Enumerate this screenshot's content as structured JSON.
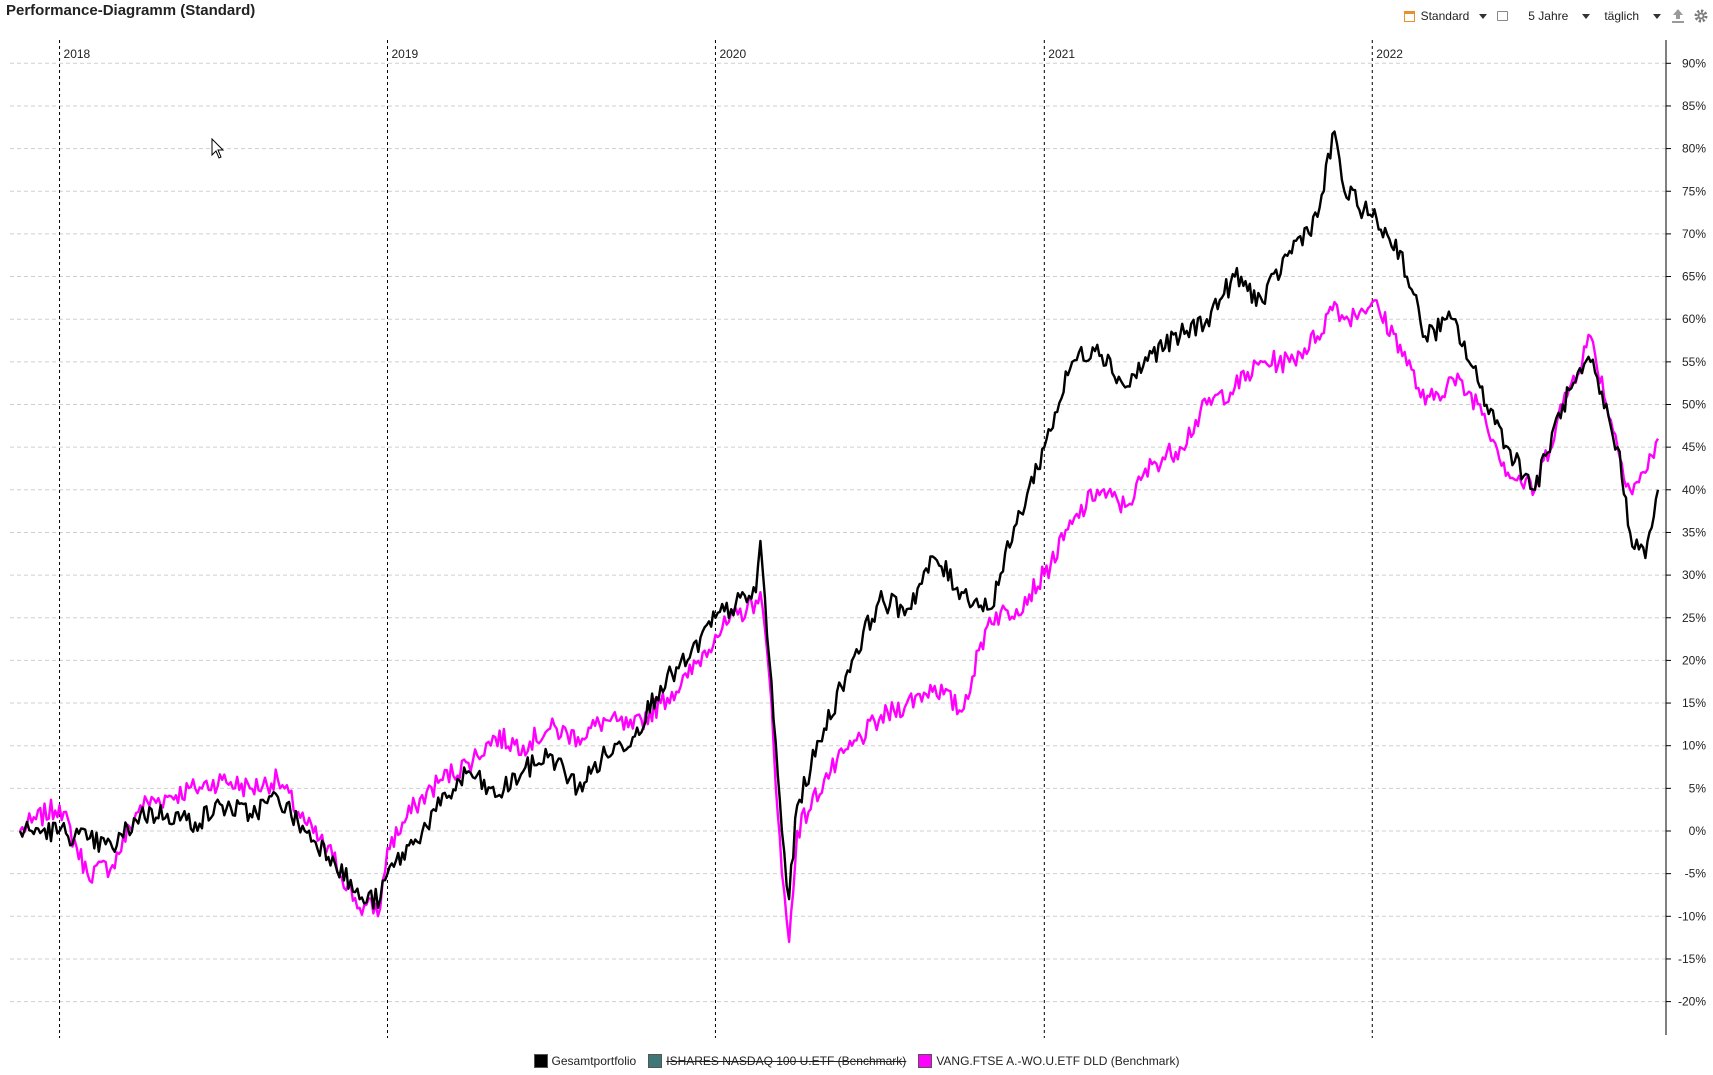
{
  "title": "Performance-Diagramm (Standard)",
  "toolbar": {
    "view": "Standard",
    "period": "5 Jahre",
    "interval": "täglich"
  },
  "chart_data": {
    "type": "line",
    "y_unit": "%",
    "ylim": [
      -22,
      92
    ],
    "year_labels": [
      "2018",
      "2019",
      "2020",
      "2021",
      "2022"
    ],
    "y_ticks": [
      "90%",
      "85%",
      "80%",
      "75%",
      "70%",
      "65%",
      "60%",
      "55%",
      "50%",
      "45%",
      "40%",
      "35%",
      "30%",
      "25%",
      "20%",
      "15%",
      "10%",
      "5%",
      "0%",
      "-5%",
      "-10%",
      "-15%",
      "-20%"
    ],
    "grid": true,
    "legend_position": "bottom",
    "series": [
      {
        "name": "Gesamtportfolio",
        "color": "#000000",
        "x": [
          "2017-11-18",
          "2017-12-01",
          "2018-01-01",
          "2018-02-01",
          "2018-03-01",
          "2018-04-01",
          "2018-05-01",
          "2018-06-01",
          "2018-07-01",
          "2018-08-01",
          "2018-09-01",
          "2018-10-01",
          "2018-11-01",
          "2018-12-01",
          "2018-12-24",
          "2019-01-01",
          "2019-02-01",
          "2019-03-01",
          "2019-04-01",
          "2019-05-01",
          "2019-06-01",
          "2019-07-01",
          "2019-08-01",
          "2019-09-01",
          "2019-10-01",
          "2019-11-01",
          "2019-12-01",
          "2020-01-01",
          "2020-02-15",
          "2020-02-20",
          "2020-03-01",
          "2020-03-15",
          "2020-03-23",
          "2020-04-01",
          "2020-05-01",
          "2020-06-01",
          "2020-07-01",
          "2020-08-01",
          "2020-09-01",
          "2020-10-01",
          "2020-11-01",
          "2020-12-01",
          "2021-01-01",
          "2021-02-01",
          "2021-03-01",
          "2021-04-01",
          "2021-05-01",
          "2021-06-01",
          "2021-07-01",
          "2021-08-01",
          "2021-09-01",
          "2021-10-01",
          "2021-11-01",
          "2021-11-20",
          "2021-12-01",
          "2022-01-01",
          "2022-02-01",
          "2022-03-01",
          "2022-04-01",
          "2022-05-01",
          "2022-06-01",
          "2022-07-01",
          "2022-08-01",
          "2022-09-01",
          "2022-10-01",
          "2022-10-15",
          "2022-11-01",
          "2022-11-15"
        ],
        "values": [
          0,
          0,
          0,
          -1,
          -2,
          2,
          2,
          1,
          3,
          2,
          4,
          0,
          -3,
          -8,
          -8,
          -5,
          -1,
          3,
          7,
          4,
          7,
          9,
          5,
          9,
          11,
          17,
          20,
          25,
          28,
          34,
          20,
          0,
          -8,
          3,
          12,
          20,
          27,
          26,
          32,
          28,
          26,
          36,
          45,
          55,
          57,
          52,
          56,
          58,
          60,
          65,
          62,
          68,
          72,
          82,
          75,
          72,
          68,
          58,
          60,
          52,
          45,
          40,
          50,
          55,
          45,
          35,
          32,
          40
        ]
      },
      {
        "name": "ISHARES NASDAQ 100 U.ETF (Benchmark)",
        "color": "#3e7778",
        "hidden": true,
        "x": [],
        "values": []
      },
      {
        "name": "VANG.FTSE A.-WO.U.ETF DLD (Benchmark)",
        "color": "#ff00ff",
        "x": [
          "2017-11-18",
          "2017-12-01",
          "2018-01-01",
          "2018-02-01",
          "2018-03-01",
          "2018-04-01",
          "2018-05-01",
          "2018-06-01",
          "2018-07-01",
          "2018-08-01",
          "2018-09-01",
          "2018-10-01",
          "2018-11-01",
          "2018-12-01",
          "2018-12-24",
          "2019-01-01",
          "2019-02-01",
          "2019-03-01",
          "2019-04-01",
          "2019-05-01",
          "2019-06-01",
          "2019-07-01",
          "2019-08-01",
          "2019-09-01",
          "2019-10-01",
          "2019-11-01",
          "2019-12-01",
          "2020-01-01",
          "2020-02-15",
          "2020-02-20",
          "2020-03-01",
          "2020-03-15",
          "2020-03-23",
          "2020-04-01",
          "2020-05-01",
          "2020-06-01",
          "2020-07-01",
          "2020-08-01",
          "2020-09-01",
          "2020-10-01",
          "2020-11-01",
          "2020-12-01",
          "2021-01-01",
          "2021-02-01",
          "2021-03-01",
          "2021-04-01",
          "2021-05-01",
          "2021-06-01",
          "2021-07-01",
          "2021-08-01",
          "2021-09-01",
          "2021-10-01",
          "2021-11-01",
          "2021-11-20",
          "2021-12-01",
          "2022-01-01",
          "2022-02-01",
          "2022-03-01",
          "2022-04-01",
          "2022-05-01",
          "2022-06-01",
          "2022-07-01",
          "2022-08-01",
          "2022-09-01",
          "2022-10-01",
          "2022-10-15",
          "2022-11-01",
          "2022-11-15"
        ],
        "values": [
          0,
          1,
          3,
          -5,
          -4,
          3,
          4,
          5,
          6,
          5,
          6,
          1,
          -3,
          -9,
          -9,
          -2,
          3,
          6,
          8,
          11,
          10,
          12,
          11,
          13,
          12,
          15,
          18,
          23,
          27,
          28,
          18,
          -5,
          -13,
          0,
          6,
          10,
          13,
          15,
          17,
          14,
          25,
          26,
          30,
          36,
          40,
          38,
          43,
          45,
          50,
          52,
          55,
          55,
          58,
          62,
          60,
          62,
          57,
          50,
          53,
          50,
          42,
          40,
          50,
          58,
          45,
          40,
          42,
          46
        ]
      }
    ]
  }
}
